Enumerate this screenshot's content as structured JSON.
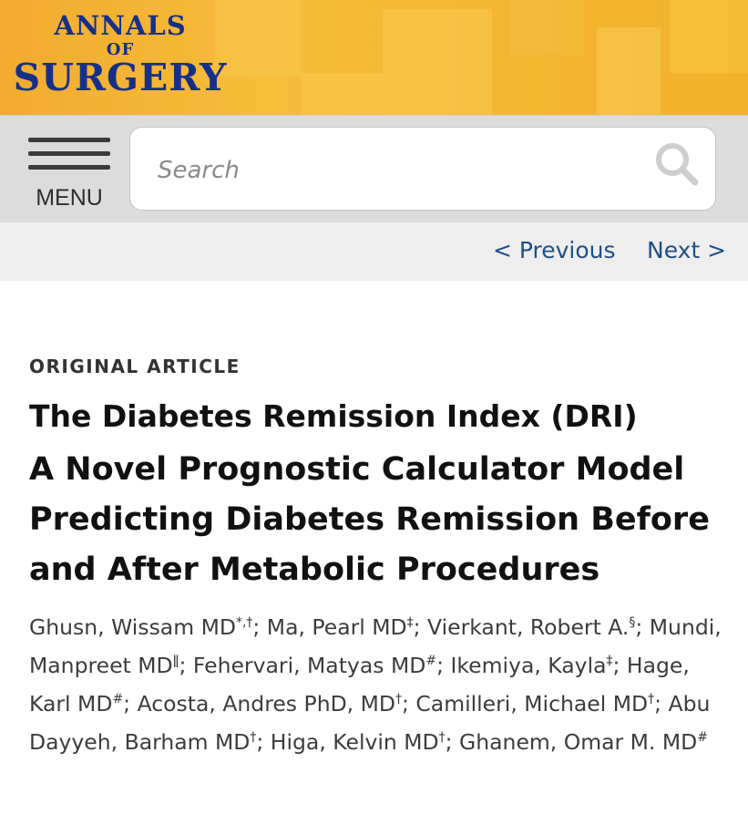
{
  "journal": {
    "line1": "ANNALS",
    "line2": "OF",
    "line3": "SURGERY"
  },
  "toolbar": {
    "menu_label": "MENU",
    "search_placeholder": "Search"
  },
  "nav": {
    "previous": "< Previous",
    "next": "Next >"
  },
  "article": {
    "type": "ORIGINAL ARTICLE",
    "title": "The Diabetes Remission Index (DRI)",
    "subtitle": "A Novel Prognostic Calculator Model Predicting Diabetes Remission Before and After Metabolic Procedures",
    "authors": [
      {
        "name": "Ghusn, Wissam MD",
        "aff": "*,†"
      },
      {
        "name": "Ma, Pearl MD",
        "aff": "‡"
      },
      {
        "name": "Vierkant, Robert A.",
        "aff": "§"
      },
      {
        "name": "Mundi, Manpreet MD",
        "aff": "ǁ"
      },
      {
        "name": "Fehervari, Matyas MD",
        "aff": "#"
      },
      {
        "name": "Ikemiya, Kayla",
        "aff": "‡"
      },
      {
        "name": "Hage, Karl MD",
        "aff": "#"
      },
      {
        "name": "Acosta, Andres PhD, MD",
        "aff": "†"
      },
      {
        "name": "Camilleri, Michael MD",
        "aff": "†"
      },
      {
        "name": "Abu Dayyeh, Barham MD",
        "aff": "†"
      },
      {
        "name": "Higa, Kelvin MD",
        "aff": "†"
      },
      {
        "name": "Ghanem, Omar M. MD",
        "aff": "#"
      }
    ]
  },
  "colors": {
    "banner": "#f4b12c",
    "logo_text": "#16308a",
    "link": "#1f4f86"
  }
}
